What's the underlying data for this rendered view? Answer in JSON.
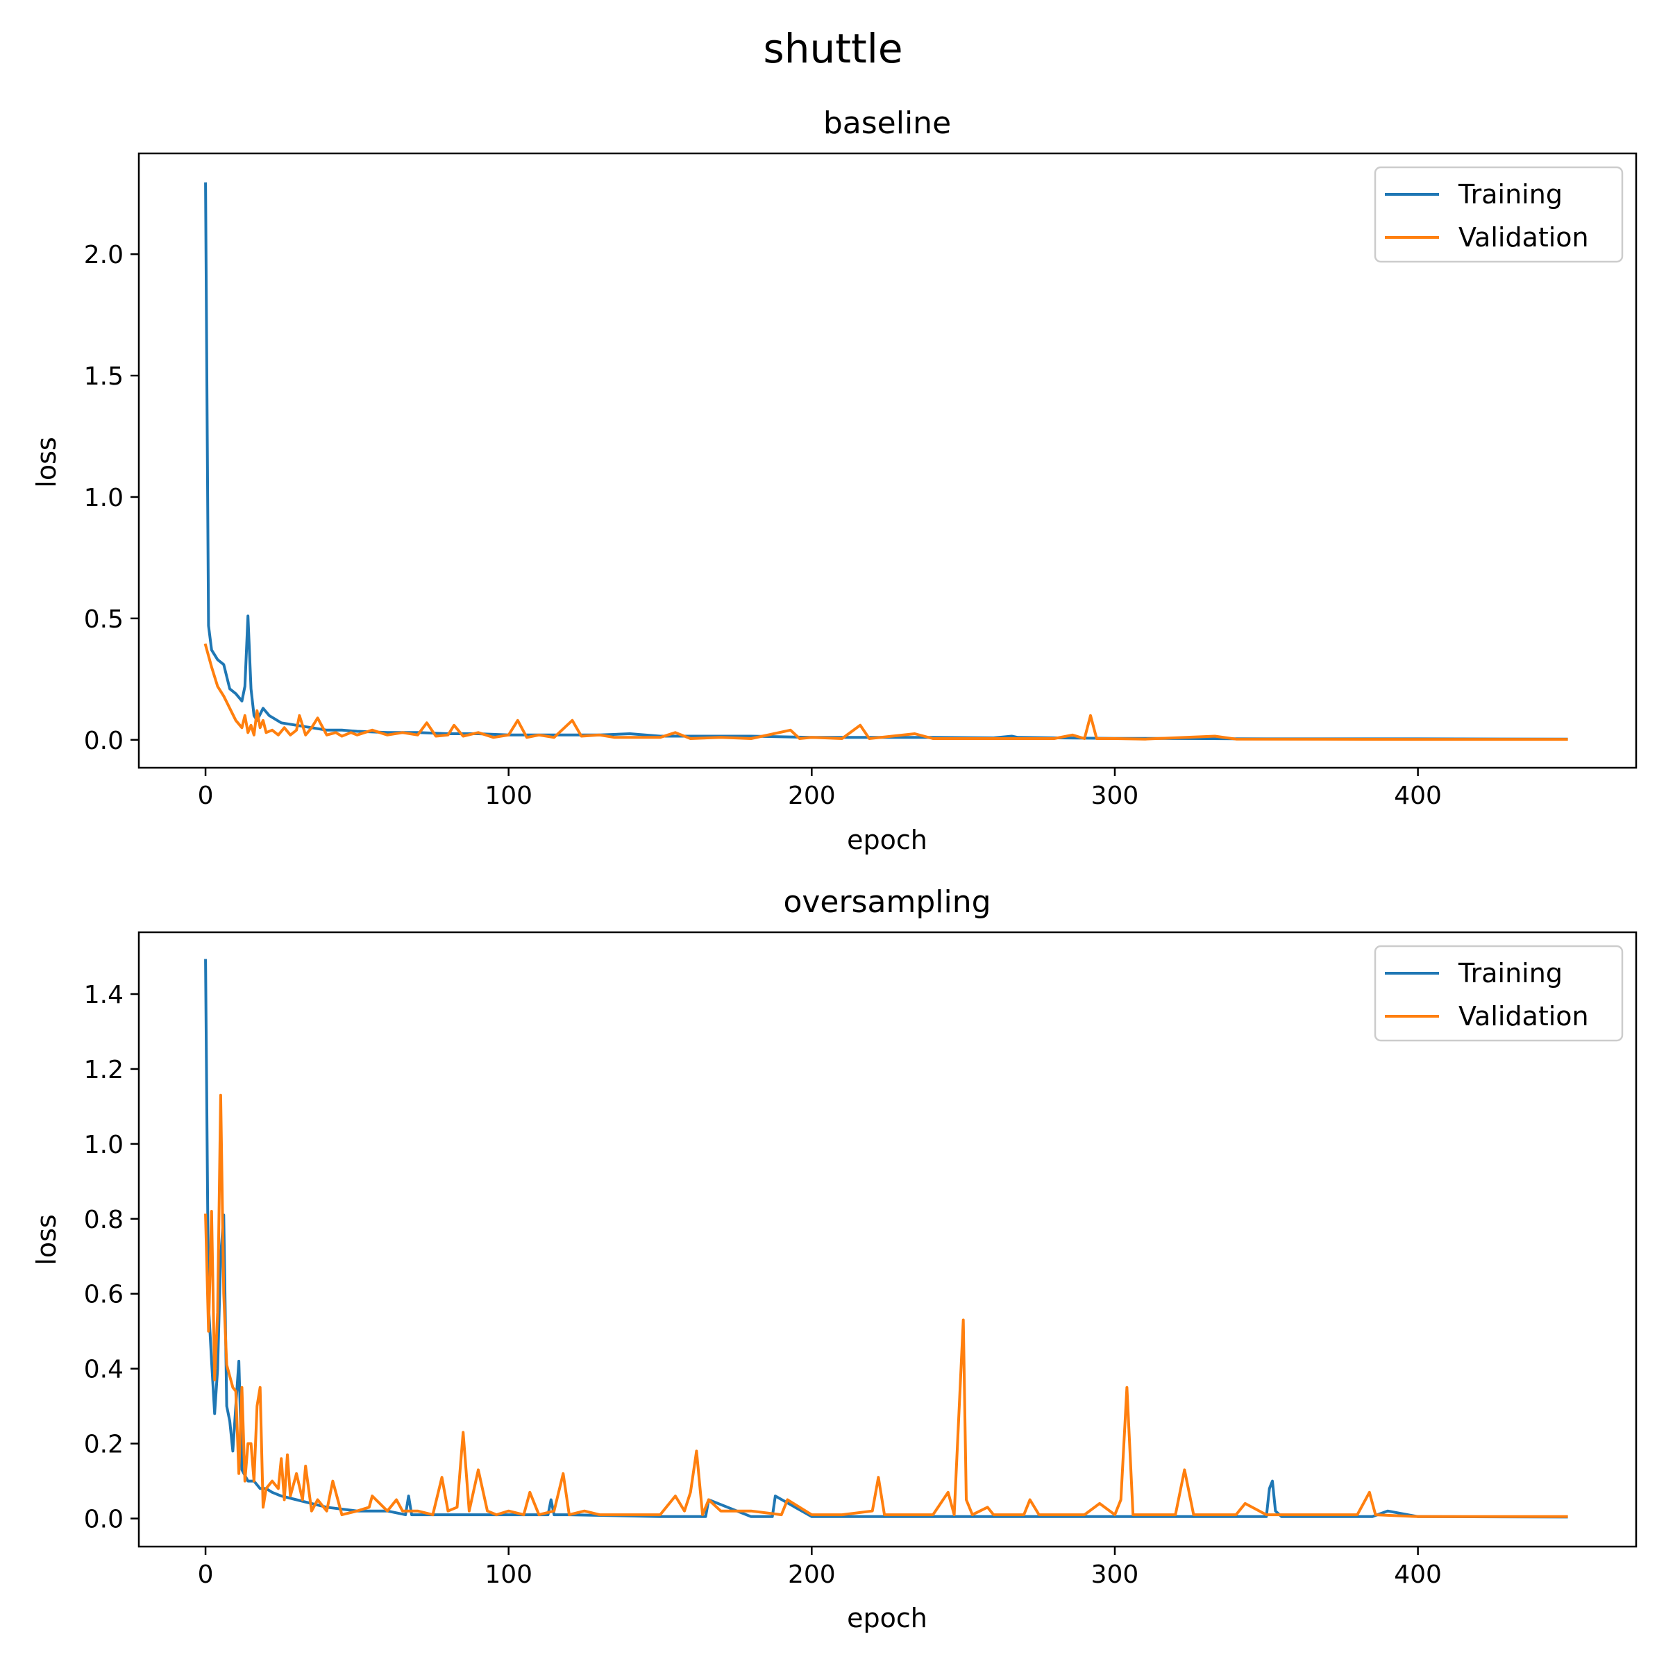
{
  "figure": {
    "suptitle": "shuttle"
  },
  "colors": {
    "training": "#1f77b4",
    "validation": "#ff7f0e",
    "frame": "#000000",
    "legend_border": "#cccccc"
  },
  "chart_data": [
    {
      "type": "line",
      "title": "baseline",
      "xlabel": "epoch",
      "ylabel": "loss",
      "xlim": [
        -22,
        472
      ],
      "ylim": [
        -0.115,
        2.415
      ],
      "xticks": [
        0,
        100,
        200,
        300,
        400
      ],
      "xtick_labels": [
        "0",
        "100",
        "200",
        "300",
        "400"
      ],
      "yticks": [
        0.0,
        0.5,
        1.0,
        1.5,
        2.0
      ],
      "ytick_labels": [
        "0.0",
        "0.5",
        "1.0",
        "1.5",
        "2.0"
      ],
      "grid": false,
      "legend": "top-right",
      "series": [
        {
          "name": "Training",
          "color": "#1f77b4",
          "x": [
            0,
            1,
            2,
            4,
            6,
            8,
            10,
            12,
            13,
            14,
            15,
            16,
            17,
            19,
            21,
            25,
            30,
            35,
            40,
            45,
            50,
            60,
            70,
            80,
            90,
            100,
            110,
            120,
            130,
            140,
            150,
            160,
            180,
            200,
            220,
            240,
            260,
            266,
            268,
            280,
            300,
            330,
            350,
            400,
            449
          ],
          "y": [
            2.29,
            0.47,
            0.37,
            0.33,
            0.31,
            0.21,
            0.19,
            0.16,
            0.22,
            0.51,
            0.21,
            0.1,
            0.08,
            0.13,
            0.1,
            0.07,
            0.06,
            0.05,
            0.04,
            0.04,
            0.035,
            0.03,
            0.03,
            0.025,
            0.025,
            0.02,
            0.02,
            0.02,
            0.02,
            0.025,
            0.015,
            0.015,
            0.015,
            0.01,
            0.01,
            0.01,
            0.008,
            0.015,
            0.01,
            0.008,
            0.006,
            0.005,
            0.004,
            0.004,
            0.003
          ]
        },
        {
          "name": "Validation",
          "color": "#ff7f0e",
          "x": [
            0,
            2,
            4,
            6,
            8,
            10,
            12,
            13,
            14,
            15,
            16,
            17,
            18,
            19,
            20,
            22,
            24,
            26,
            28,
            30,
            31,
            33,
            35,
            37,
            40,
            43,
            45,
            48,
            50,
            55,
            60,
            65,
            70,
            73,
            76,
            80,
            82,
            85,
            90,
            95,
            100,
            103,
            106,
            110,
            115,
            121,
            124,
            130,
            135,
            140,
            150,
            155,
            160,
            170,
            180,
            193,
            196,
            200,
            210,
            216,
            219,
            234,
            240,
            260,
            280,
            286,
            290,
            292,
            294,
            300,
            310,
            333,
            340,
            400,
            449
          ],
          "y": [
            0.39,
            0.3,
            0.22,
            0.18,
            0.13,
            0.08,
            0.05,
            0.1,
            0.03,
            0.06,
            0.02,
            0.12,
            0.05,
            0.08,
            0.03,
            0.04,
            0.02,
            0.05,
            0.02,
            0.04,
            0.1,
            0.02,
            0.05,
            0.09,
            0.02,
            0.03,
            0.015,
            0.03,
            0.02,
            0.04,
            0.02,
            0.03,
            0.02,
            0.07,
            0.015,
            0.02,
            0.06,
            0.015,
            0.03,
            0.01,
            0.02,
            0.08,
            0.01,
            0.02,
            0.01,
            0.08,
            0.015,
            0.02,
            0.01,
            0.01,
            0.01,
            0.03,
            0.005,
            0.01,
            0.005,
            0.04,
            0.005,
            0.01,
            0.005,
            0.06,
            0.005,
            0.025,
            0.005,
            0.005,
            0.005,
            0.02,
            0.005,
            0.1,
            0.005,
            0.005,
            0.003,
            0.015,
            0.003,
            0.002,
            0.002
          ]
        }
      ]
    },
    {
      "type": "line",
      "title": "oversampling",
      "xlabel": "epoch",
      "ylabel": "loss",
      "xlim": [
        -22,
        472
      ],
      "ylim": [
        -0.075,
        1.565
      ],
      "xticks": [
        0,
        100,
        200,
        300,
        400
      ],
      "xtick_labels": [
        "0",
        "100",
        "200",
        "300",
        "400"
      ],
      "yticks": [
        0.0,
        0.2,
        0.4,
        0.6,
        0.8,
        1.0,
        1.2,
        1.4
      ],
      "ytick_labels": [
        "0.0",
        "0.2",
        "0.4",
        "0.6",
        "0.8",
        "1.0",
        "1.2",
        "1.4"
      ],
      "grid": false,
      "legend": "top-right",
      "series": [
        {
          "name": "Training",
          "color": "#1f77b4",
          "x": [
            0,
            1,
            2,
            3,
            4,
            5,
            6,
            7,
            8,
            9,
            10,
            11,
            12,
            14,
            16,
            18,
            20,
            22,
            25,
            30,
            35,
            40,
            50,
            60,
            66,
            67,
            68,
            80,
            100,
            113,
            114,
            115,
            120,
            150,
            165,
            166,
            180,
            187,
            188,
            200,
            250,
            300,
            350,
            351,
            352,
            353,
            355,
            360,
            385,
            390,
            400,
            449
          ],
          "y": [
            1.49,
            0.57,
            0.42,
            0.28,
            0.4,
            0.7,
            0.81,
            0.3,
            0.26,
            0.18,
            0.3,
            0.42,
            0.13,
            0.1,
            0.1,
            0.08,
            0.08,
            0.07,
            0.06,
            0.05,
            0.04,
            0.03,
            0.02,
            0.02,
            0.01,
            0.06,
            0.01,
            0.01,
            0.01,
            0.01,
            0.05,
            0.01,
            0.01,
            0.005,
            0.005,
            0.05,
            0.005,
            0.005,
            0.06,
            0.005,
            0.005,
            0.005,
            0.005,
            0.08,
            0.1,
            0.02,
            0.005,
            0.005,
            0.005,
            0.02,
            0.005,
            0.004
          ]
        },
        {
          "name": "Validation",
          "color": "#ff7f0e",
          "x": [
            0,
            1,
            2,
            3,
            4,
            5,
            6,
            7,
            8,
            9,
            10,
            11,
            12,
            13,
            14,
            15,
            16,
            17,
            18,
            19,
            20,
            22,
            24,
            25,
            26,
            27,
            28,
            30,
            32,
            33,
            35,
            37,
            40,
            42,
            45,
            50,
            54,
            55,
            60,
            63,
            65,
            70,
            75,
            78,
            80,
            83,
            85,
            87,
            90,
            93,
            96,
            100,
            105,
            107,
            110,
            115,
            118,
            120,
            125,
            130,
            140,
            150,
            155,
            158,
            160,
            162,
            164,
            166,
            170,
            180,
            190,
            192,
            200,
            210,
            220,
            222,
            224,
            240,
            245,
            247,
            250,
            251,
            253,
            258,
            260,
            270,
            272,
            275,
            290,
            295,
            300,
            302,
            304,
            306,
            320,
            323,
            326,
            340,
            343,
            350,
            360,
            380,
            384,
            386,
            400,
            449
          ],
          "y": [
            0.81,
            0.5,
            0.82,
            0.37,
            0.55,
            1.13,
            0.6,
            0.41,
            0.38,
            0.35,
            0.34,
            0.12,
            0.35,
            0.1,
            0.2,
            0.2,
            0.1,
            0.3,
            0.35,
            0.03,
            0.08,
            0.1,
            0.08,
            0.16,
            0.05,
            0.17,
            0.06,
            0.12,
            0.05,
            0.14,
            0.02,
            0.05,
            0.02,
            0.1,
            0.01,
            0.02,
            0.03,
            0.06,
            0.02,
            0.05,
            0.02,
            0.02,
            0.01,
            0.11,
            0.02,
            0.03,
            0.23,
            0.02,
            0.13,
            0.02,
            0.01,
            0.02,
            0.01,
            0.07,
            0.01,
            0.02,
            0.12,
            0.01,
            0.02,
            0.01,
            0.01,
            0.01,
            0.06,
            0.02,
            0.07,
            0.18,
            0.01,
            0.05,
            0.02,
            0.02,
            0.01,
            0.05,
            0.01,
            0.01,
            0.02,
            0.11,
            0.01,
            0.01,
            0.07,
            0.01,
            0.53,
            0.05,
            0.01,
            0.03,
            0.01,
            0.01,
            0.05,
            0.01,
            0.01,
            0.04,
            0.01,
            0.05,
            0.35,
            0.01,
            0.01,
            0.13,
            0.01,
            0.01,
            0.04,
            0.01,
            0.01,
            0.01,
            0.07,
            0.01,
            0.005,
            0.005
          ]
        }
      ]
    }
  ]
}
